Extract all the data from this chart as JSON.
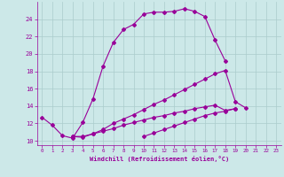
{
  "xlabel": "Windchill (Refroidissement éolien,°C)",
  "background_color": "#cce8e8",
  "grid_color": "#aacccc",
  "line_color": "#990099",
  "x": [
    0,
    1,
    2,
    3,
    4,
    5,
    6,
    7,
    8,
    9,
    10,
    11,
    12,
    13,
    14,
    15,
    16,
    17,
    18,
    19,
    20,
    21,
    22,
    23
  ],
  "curve1": [
    12.7,
    11.8,
    10.6,
    10.3,
    12.1,
    14.8,
    18.6,
    21.3,
    22.8,
    23.4,
    24.6,
    24.8,
    24.8,
    24.9,
    25.2,
    24.9,
    24.3,
    21.6,
    19.2,
    null,
    null,
    null,
    null,
    null
  ],
  "curve2": [
    null,
    null,
    null,
    10.5,
    10.4,
    10.8,
    11.3,
    12.0,
    12.5,
    13.0,
    13.6,
    14.2,
    14.7,
    15.3,
    15.9,
    16.5,
    17.1,
    17.7,
    18.1,
    14.5,
    13.8,
    null,
    null,
    null
  ],
  "curve3": [
    null,
    null,
    null,
    10.5,
    10.5,
    10.8,
    11.1,
    11.4,
    11.8,
    12.1,
    12.4,
    12.7,
    12.9,
    13.2,
    13.4,
    13.7,
    13.9,
    14.1,
    13.5,
    13.7,
    null,
    null,
    null,
    null
  ],
  "curve4": [
    null,
    null,
    null,
    null,
    null,
    null,
    null,
    null,
    null,
    null,
    10.5,
    10.9,
    11.3,
    11.7,
    12.1,
    12.5,
    12.9,
    13.2,
    13.4,
    13.7,
    null,
    null,
    null,
    null
  ],
  "ylim": [
    9.5,
    26.0
  ],
  "xlim": [
    -0.5,
    23.5
  ],
  "yticks": [
    10,
    12,
    14,
    16,
    18,
    20,
    22,
    24
  ],
  "xticks": [
    0,
    1,
    2,
    3,
    4,
    5,
    6,
    7,
    8,
    9,
    10,
    11,
    12,
    13,
    14,
    15,
    16,
    17,
    18,
    19,
    20,
    21,
    22,
    23
  ]
}
